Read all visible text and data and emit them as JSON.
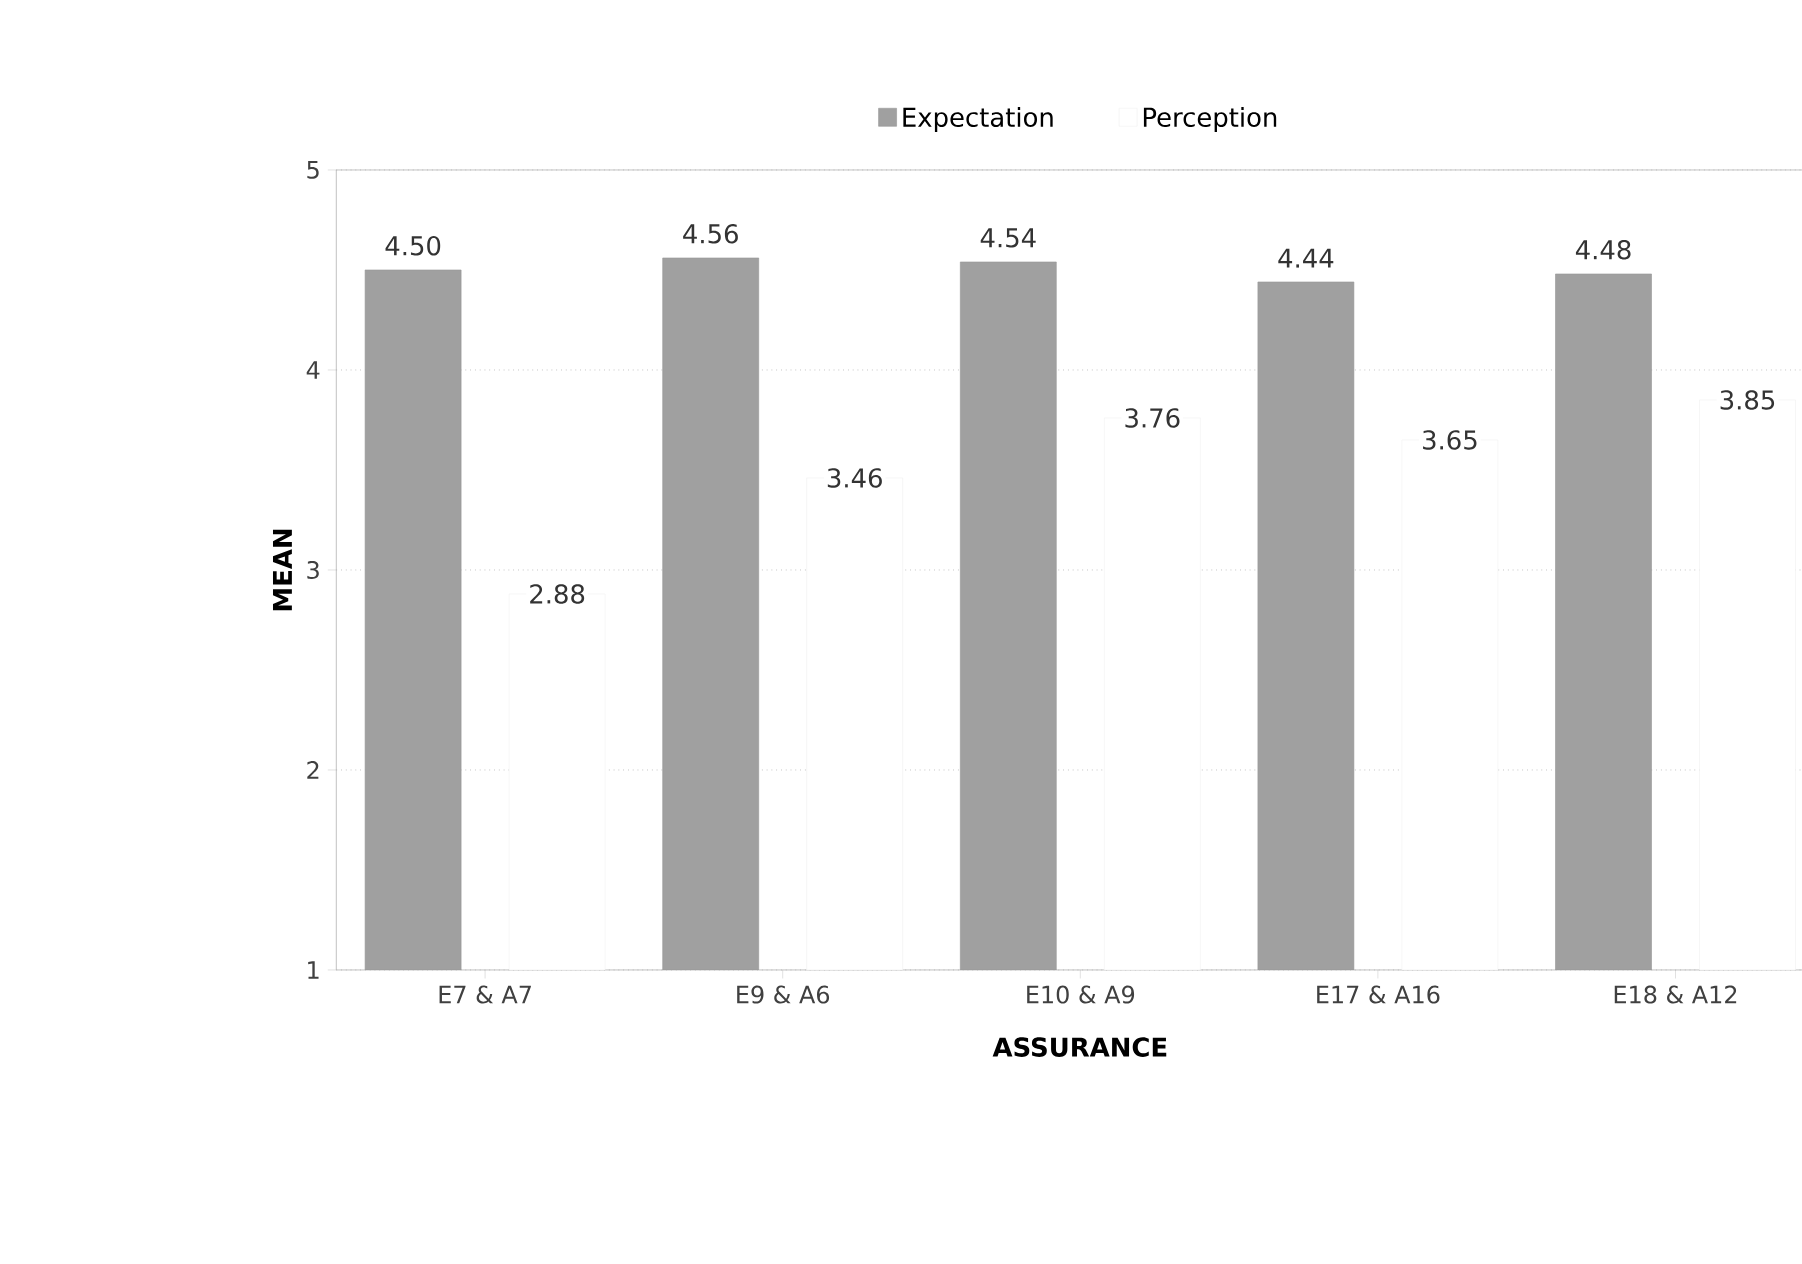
{
  "chart_data": {
    "type": "bar",
    "xlabel": "ASSURANCE",
    "ylabel": "MEAN",
    "categories": [
      "E7 & A7",
      "E9 & A6",
      "E10 & A9",
      "E17 & A16",
      "E18 & A12"
    ],
    "series": [
      {
        "name": "Expectation",
        "color": "#a0a0a0",
        "values": [
          4.5,
          4.56,
          4.54,
          4.44,
          4.48
        ],
        "value_labels": [
          "4.50",
          "4.56",
          "4.54",
          "4.44",
          "4.48"
        ]
      },
      {
        "name": "Perception",
        "color": "#ffffff",
        "values": [
          2.88,
          3.46,
          3.76,
          3.65,
          3.85
        ],
        "value_labels": [
          "2.88",
          "3.46",
          "3.76",
          "3.65",
          "3.85"
        ]
      }
    ],
    "ylim": [
      1,
      5
    ],
    "yticks": [
      1,
      2,
      3,
      4,
      5
    ],
    "grid": "y",
    "legend": "top"
  }
}
